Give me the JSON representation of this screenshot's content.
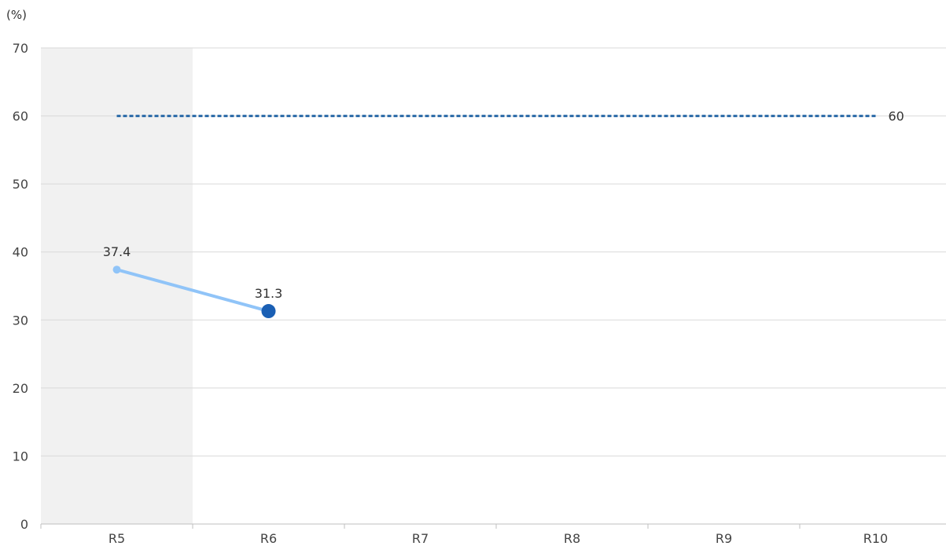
{
  "chart_data": {
    "type": "line",
    "unit_label": "(%)",
    "categories": [
      "R5",
      "R6",
      "R7",
      "R8",
      "R9",
      "R10"
    ],
    "ylim": [
      0,
      70
    ],
    "yticks": [
      0,
      10,
      20,
      30,
      40,
      50,
      60,
      70
    ],
    "grid": true,
    "shaded_category": "R5",
    "series": [
      {
        "type": "line",
        "x": [
          "R5",
          "R6"
        ],
        "values": [
          37.4,
          31.3
        ],
        "labels": [
          "37.4",
          "31.3"
        ],
        "color": "#90c4f8",
        "highlight_color": "#1a5fb4"
      },
      {
        "type": "target-line",
        "x": [
          "R5",
          "R10"
        ],
        "values": [
          60,
          60
        ],
        "label": "60",
        "color": "#2a6aa8",
        "style": "dashed"
      }
    ],
    "colors": {
      "shade": "#f1f1f1",
      "grid": "#d9d9d9",
      "axis": "#bfbfbf"
    }
  }
}
